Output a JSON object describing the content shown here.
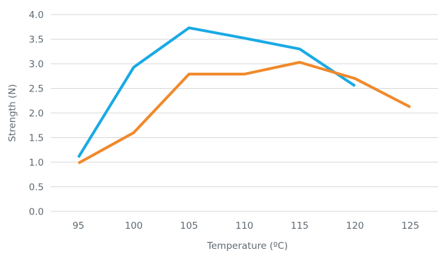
{
  "chart_data": {
    "type": "line",
    "title": "",
    "xlabel": "Temperature (ºC)",
    "ylabel": "Strength (N)",
    "x": [
      95,
      100,
      105,
      110,
      115,
      120,
      125
    ],
    "x_tick_labels": [
      "95",
      "100",
      "105",
      "110",
      "115",
      "120",
      "125"
    ],
    "y_tick_labels": [
      "0.0",
      "0.5",
      "1.0",
      "1.5",
      "2.0",
      "2.5",
      "3.0",
      "3.5",
      "4.0"
    ],
    "ylim": [
      0,
      4.0
    ],
    "xlim": [
      92.5,
      127.5
    ],
    "grid": "horizontal",
    "legend": "none",
    "series": [
      {
        "color": "#19a9e5",
        "points": [
          [
            95,
            1.1
          ],
          [
            100,
            2.93
          ],
          [
            105,
            3.73
          ],
          [
            110,
            3.52
          ],
          [
            115,
            3.3
          ],
          [
            120,
            2.55
          ]
        ]
      },
      {
        "color": "#f0892b",
        "points": [
          [
            95,
            0.98
          ],
          [
            100,
            1.6
          ],
          [
            105,
            2.79
          ],
          [
            110,
            2.79
          ],
          [
            115,
            3.03
          ],
          [
            120,
            2.7
          ],
          [
            125,
            2.12
          ]
        ]
      }
    ]
  }
}
